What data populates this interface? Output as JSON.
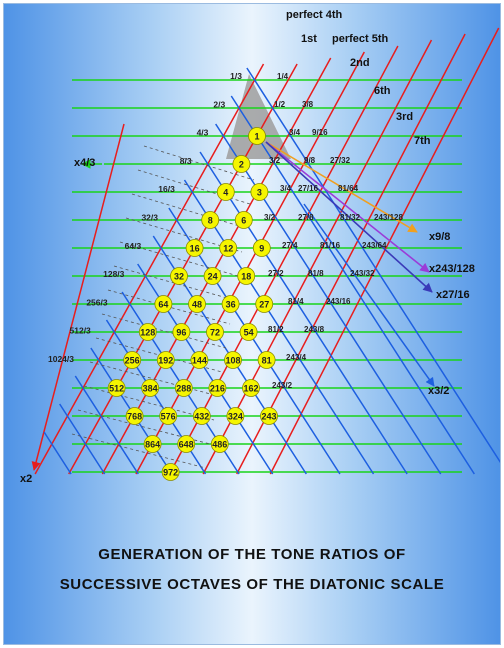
{
  "caption": {
    "line1": "GENERATION OF THE TONE RATIOS OF",
    "line2": "SUCCESSIVE OCTAVES OF THE DIATONIC SCALE"
  },
  "colors": {
    "green_lines": "#19d419",
    "red_lines": "#e81d1d",
    "blue_lines": "#1d5fe0",
    "node_fill": "#f5f500",
    "arrow_x9_8": "#f0a020",
    "arrow_x243_128": "#9a3cd8",
    "arrow_x27_16": "#3a3ab8",
    "triangle_fill": "#9e9e9e"
  },
  "interval_labels": [
    "perfect  4th",
    "1st",
    "perfect  5th",
    "2nd",
    "6th",
    "3rd",
    "7th"
  ],
  "operation_labels": {
    "x4_3": "x4/3",
    "x2": "x2",
    "x9_8": "x9/8",
    "x243_128": "x243/128",
    "x27_16": "x27/16",
    "x3_2": "x3/2"
  },
  "left_ratios": [
    "1/3",
    "2/3",
    "4/3",
    "8/3",
    "16/3",
    "32/3",
    "64/3",
    "128/3",
    "256/3",
    "512/3",
    "1024/3"
  ],
  "ratio_texts": [
    "1/4",
    "1/2",
    "3/8",
    "3/4",
    "9/16",
    "3/2",
    "9/8",
    "27/32",
    "3/4",
    "27/16",
    "81/64",
    "3/2",
    "27/8",
    "81/32",
    "243/128",
    "27/4",
    "81/16",
    "243/64",
    "27/2",
    "81/8",
    "243/32",
    "81/4",
    "243/16",
    "81/2",
    "243/8",
    "243/4",
    "243/2"
  ],
  "nodes": [
    [
      "1"
    ],
    [
      "2"
    ],
    [
      "4",
      "3"
    ],
    [
      "8",
      "6"
    ],
    [
      "16",
      "12",
      "9"
    ],
    [
      "32",
      "24",
      "18"
    ],
    [
      "64",
      "48",
      "36",
      "27"
    ],
    [
      "128",
      "96",
      "72",
      "54"
    ],
    [
      "256",
      "192",
      "144",
      "108",
      "81"
    ],
    [
      "512",
      "384",
      "288",
      "216",
      "162"
    ],
    [
      "768",
      "576",
      "432",
      "324",
      "243"
    ],
    [
      "864",
      "648",
      "486"
    ],
    [
      "972"
    ]
  ]
}
